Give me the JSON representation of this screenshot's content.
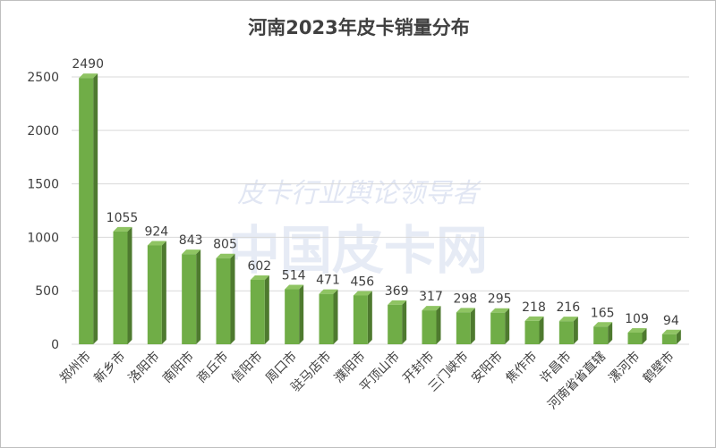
{
  "chart_data": {
    "type": "bar",
    "title": "河南2023年皮卡销量分布",
    "categories": [
      "郑州市",
      "新乡市",
      "洛阳市",
      "南阳市",
      "商丘市",
      "信阳市",
      "周口市",
      "驻马店市",
      "濮阳市",
      "平顶山市",
      "开封市",
      "三门峡市",
      "安阳市",
      "焦作市",
      "许昌市",
      "河南省省直辖",
      "漯河市",
      "鹤壁市"
    ],
    "values": [
      2490,
      1055,
      924,
      843,
      805,
      602,
      514,
      471,
      456,
      369,
      317,
      298,
      295,
      218,
      216,
      165,
      109,
      94
    ],
    "ylim": [
      0,
      2500
    ],
    "yticks": [
      0,
      500,
      1000,
      1500,
      2000,
      2500
    ],
    "xlabel": "",
    "ylabel": "",
    "grid": true,
    "legend": "none",
    "colors": {
      "bar_front": "#70ad47",
      "bar_side": "#4e7a2f",
      "bar_top": "#8fc463",
      "grid": "#d9d9d9",
      "text": "#404040"
    }
  },
  "watermark": {
    "line1": "皮卡行业舆论领导者",
    "line2": "中国皮卡网",
    "color": "#c9d3ea"
  }
}
